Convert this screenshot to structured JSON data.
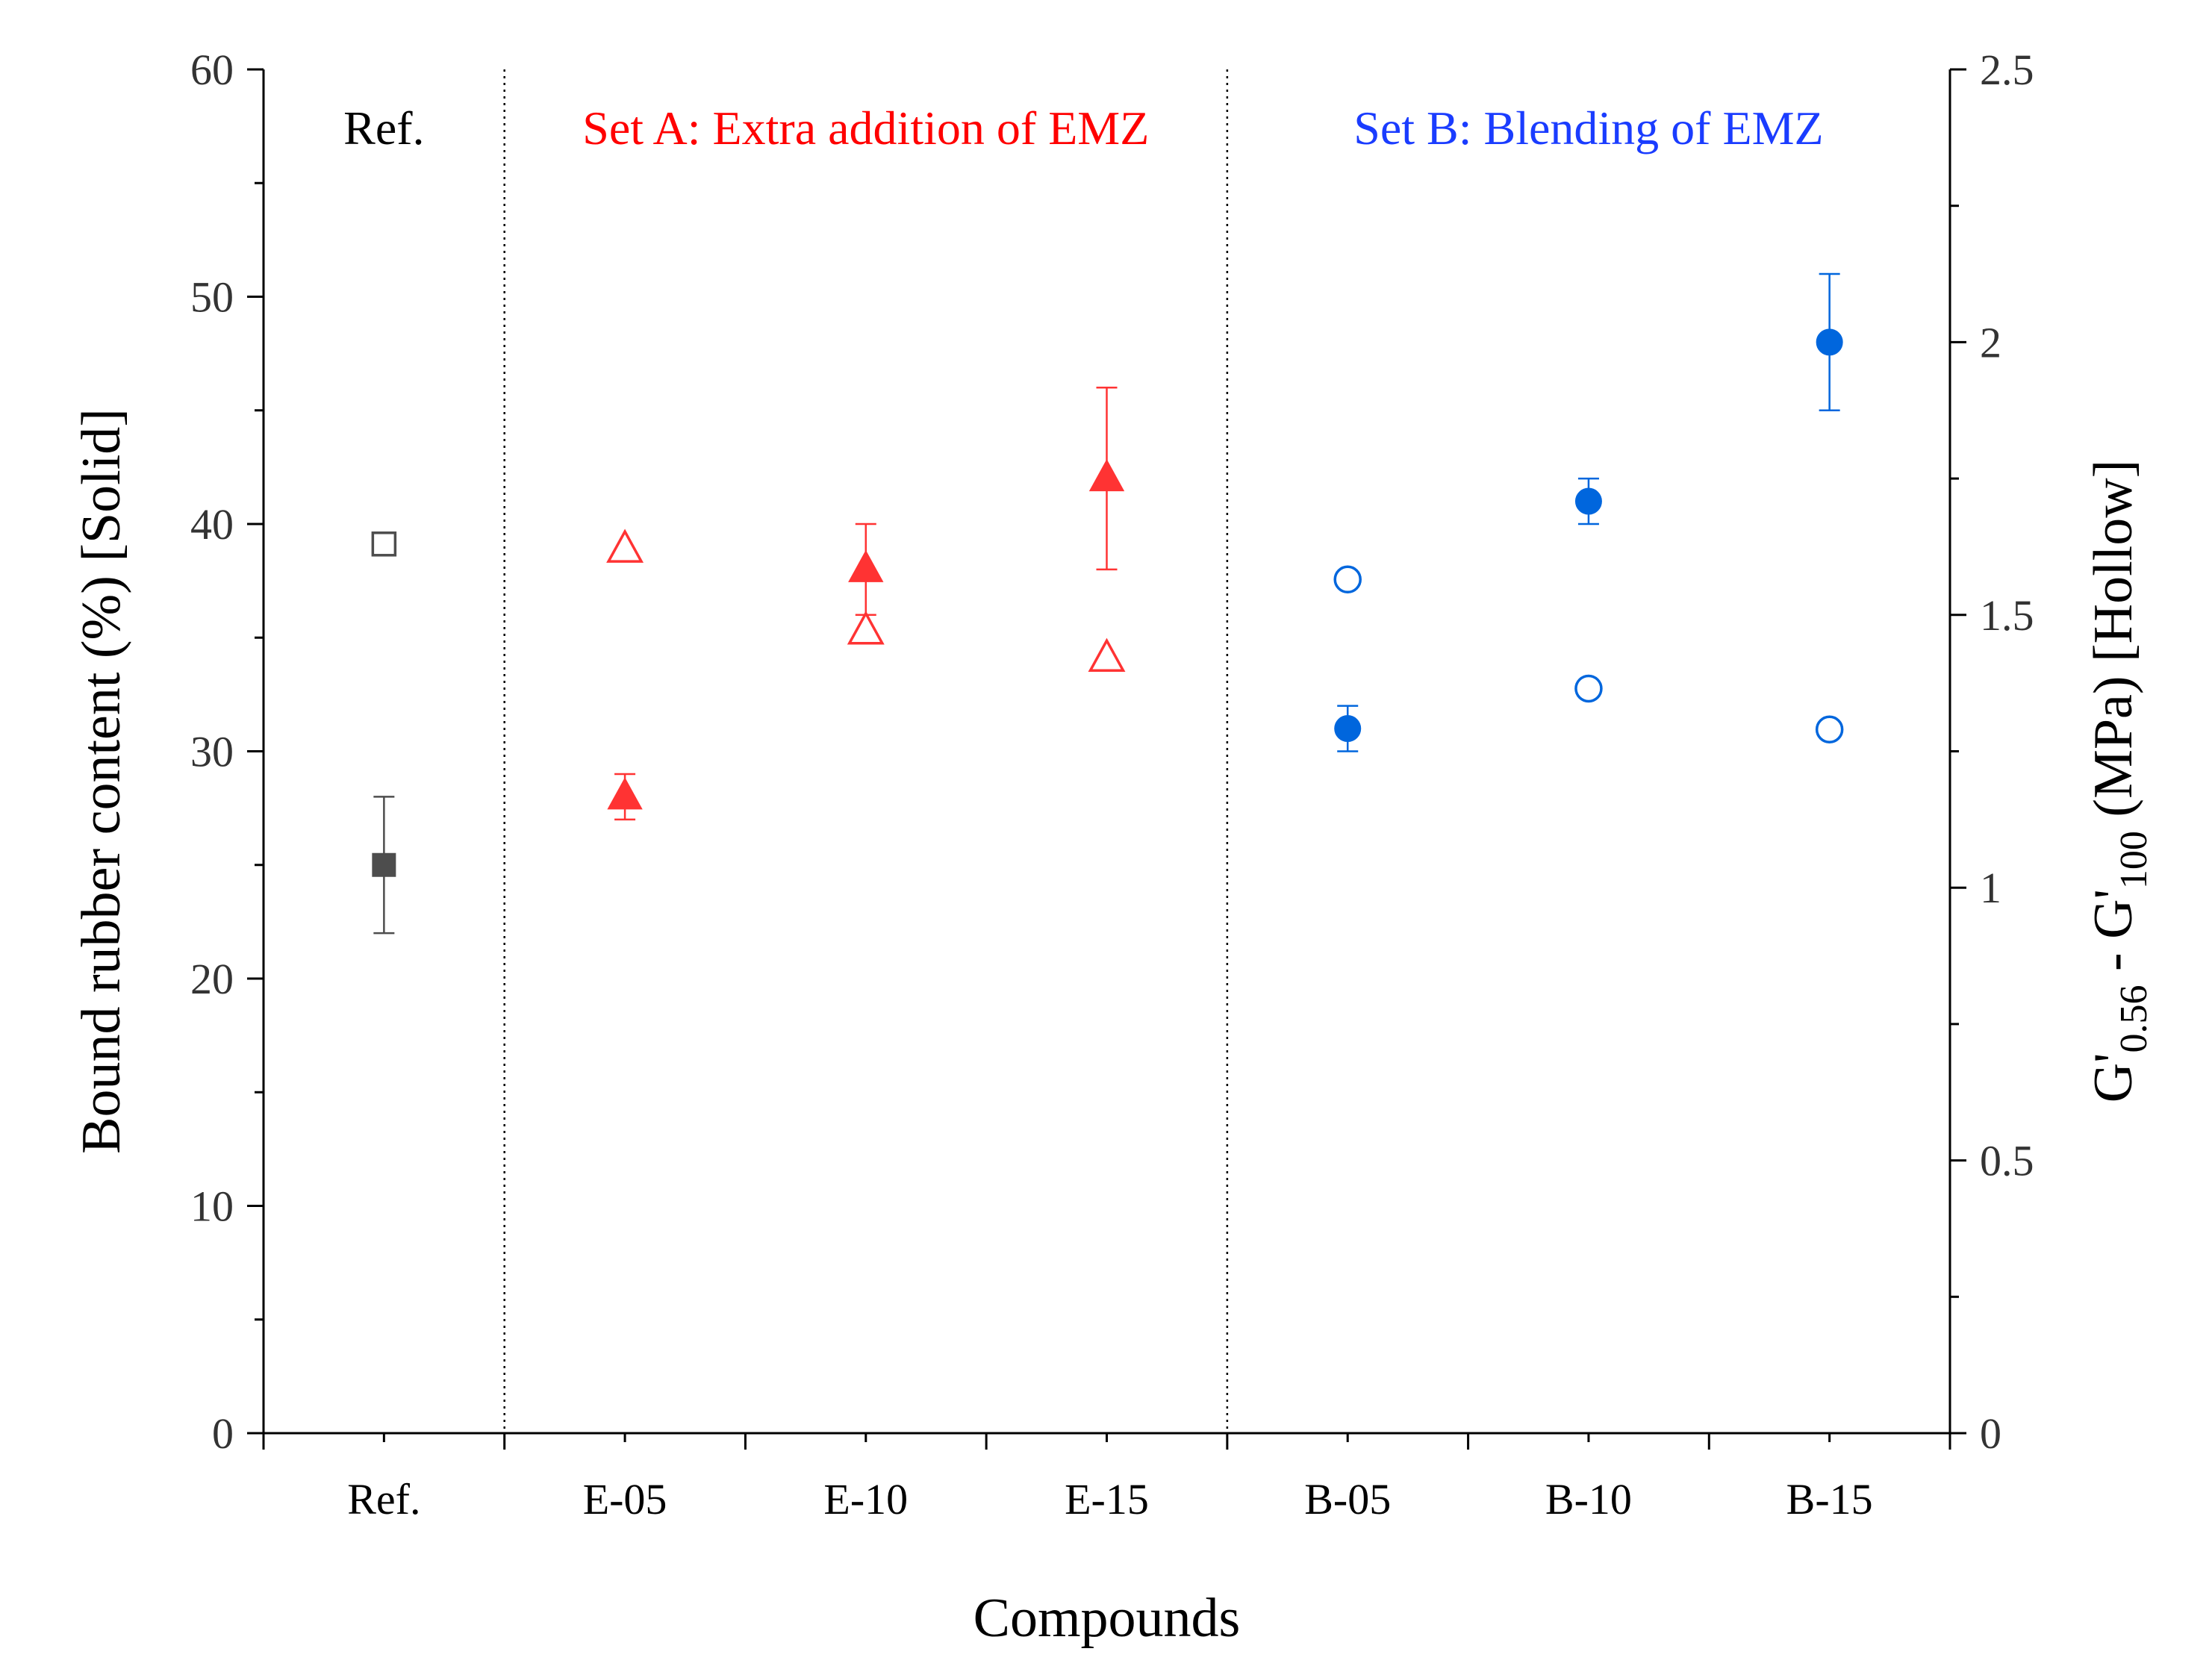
{
  "chart_data": {
    "type": "scatter",
    "title": "",
    "xlabel": "Compounds",
    "ylabel": "Bound rubber content (%) [Solid]",
    "ylabel2": {
      "prefix": "G'",
      "sub1": "0.56",
      "middle": " - G'",
      "sub2": "100",
      "suffix": " (MPa) [Hollow]"
    },
    "categories": [
      "Ref.",
      "E-05",
      "E-10",
      "E-15",
      "B-05",
      "B-10",
      "B-15"
    ],
    "ylim": [
      0,
      60
    ],
    "yticks": [
      "0",
      "10",
      "20",
      "30",
      "40",
      "50",
      "60"
    ],
    "y2lim": [
      0,
      2.5
    ],
    "y2ticks": [
      "0",
      "0.5",
      "1",
      "1.5",
      "2",
      "2.5"
    ],
    "regions": [
      {
        "label": "Ref.",
        "color": "#000000",
        "categories": [
          "Ref."
        ]
      },
      {
        "label": "Set A: Extra addition of EMZ",
        "color": "#ff0000",
        "categories": [
          "E-05",
          "E-10",
          "E-15"
        ]
      },
      {
        "label": "Set B: Blending of EMZ",
        "color": "#1a3cff",
        "categories": [
          "B-05",
          "B-10",
          "B-15"
        ]
      }
    ],
    "series": [
      {
        "name": "Bound rubber content (Solid)",
        "axis": "left",
        "fill": "solid",
        "points": [
          {
            "category": "Ref.",
            "value": 25,
            "error": 3,
            "marker": "square",
            "color": "#4d4d4d"
          },
          {
            "category": "E-05",
            "value": 28,
            "error": 1,
            "marker": "triangle",
            "color": "#ff3333"
          },
          {
            "category": "E-10",
            "value": 38,
            "error": 2,
            "marker": "triangle",
            "color": "#ff3333"
          },
          {
            "category": "E-15",
            "value": 42,
            "error": 4,
            "marker": "triangle",
            "color": "#ff3333"
          },
          {
            "category": "B-05",
            "value": 31,
            "error": 1,
            "marker": "circle",
            "color": "#0066dd"
          },
          {
            "category": "B-10",
            "value": 41,
            "error": 1,
            "marker": "circle",
            "color": "#0066dd"
          },
          {
            "category": "B-15",
            "value": 48,
            "error": 3,
            "marker": "circle",
            "color": "#0066dd"
          }
        ]
      },
      {
        "name": "G'0.56 - G'100 (Hollow)",
        "axis": "right",
        "fill": "hollow",
        "points": [
          {
            "category": "Ref.",
            "value": 1.63,
            "marker": "square",
            "color": "#4d4d4d"
          },
          {
            "category": "E-05",
            "value": 1.62,
            "marker": "triangle",
            "color": "#ff3333"
          },
          {
            "category": "E-10",
            "value": 1.47,
            "marker": "triangle",
            "color": "#ff3333"
          },
          {
            "category": "E-15",
            "value": 1.42,
            "marker": "triangle",
            "color": "#ff3333"
          },
          {
            "category": "B-05",
            "value": 1.565,
            "marker": "circle",
            "color": "#0066dd"
          },
          {
            "category": "B-10",
            "value": 1.365,
            "marker": "circle",
            "color": "#0066dd"
          },
          {
            "category": "B-15",
            "value": 1.29,
            "marker": "circle",
            "color": "#0066dd"
          }
        ]
      }
    ]
  }
}
